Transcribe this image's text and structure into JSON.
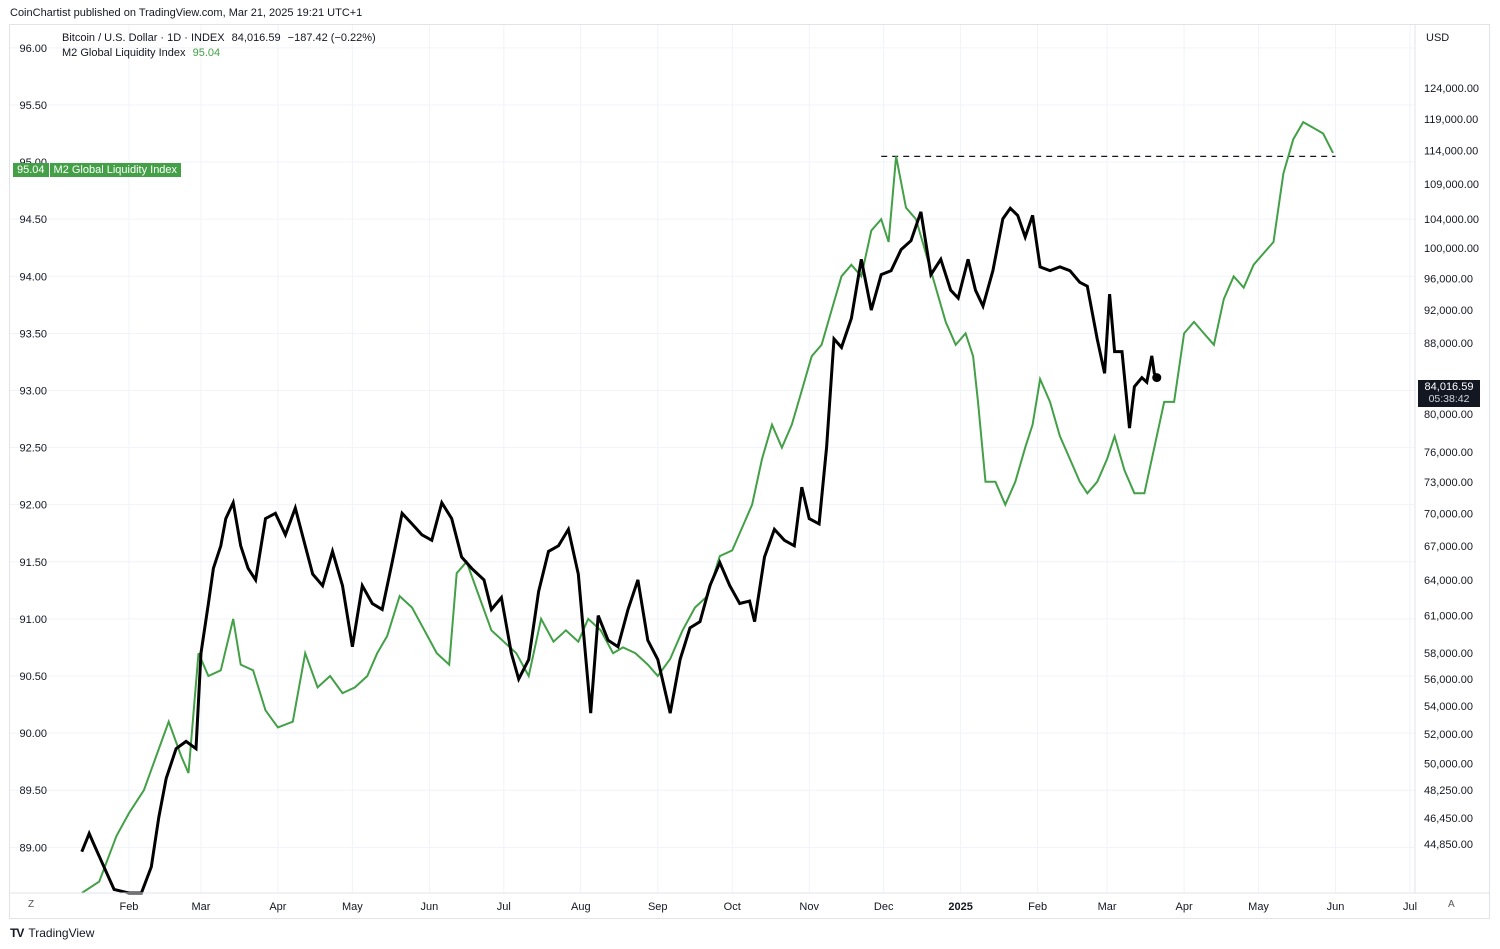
{
  "header": {
    "published": "CoinChartist published on TradingView.com, Mar 21, 2025 19:21 UTC+1"
  },
  "legend": {
    "series1_label": "Bitcoin / U.S. Dollar · 1D · INDEX",
    "series1_value": "84,016.59",
    "series1_change": "−187.42 (−0.22%)",
    "series2_label": "M2 Global Liquidity Index",
    "series2_value": "95.04"
  },
  "price_tags": {
    "m2_value": "95.04",
    "m2_label": "M2 Global Liquidity Index",
    "btc_value": "84,016.59",
    "btc_countdown": "05:38:42"
  },
  "axis": {
    "currency": "USD",
    "left_button": "Z",
    "right_button": "A"
  },
  "footer": {
    "brand": "TradingView"
  },
  "colors": {
    "m2": "#43a047",
    "btc": "#000000",
    "grid": "#f0f3fa",
    "axis_text": "#131722"
  },
  "chart_data": {
    "type": "line",
    "left_axis": {
      "min": 88.6,
      "max": 96.2,
      "ticks": [
        "96.00",
        "95.50",
        "95.00",
        "94.50",
        "94.00",
        "93.50",
        "93.00",
        "92.50",
        "92.00",
        "91.50",
        "91.00",
        "90.50",
        "90.00",
        "89.50",
        "89.00"
      ]
    },
    "right_axis": {
      "scale": "log",
      "min": 42000,
      "max": 135000,
      "ticks": [
        "124,000.00",
        "119,000.00",
        "114,000.00",
        "109,000.00",
        "104,000.00",
        "100,000.00",
        "96,000.00",
        "92,000.00",
        "88,000.00",
        "80,000.00",
        "76,000.00",
        "73,000.00",
        "70,000.00",
        "67,000.00",
        "64,000.00",
        "61,000.00",
        "58,000.00",
        "56,000.00",
        "54,000.00",
        "52,000.00",
        "50,000.00",
        "48,250.00",
        "46,450.00",
        "44,850.00"
      ]
    },
    "x_axis": {
      "labels": [
        "Feb",
        "Mar",
        "Apr",
        "May",
        "Jun",
        "Jul",
        "Aug",
        "Sep",
        "Oct",
        "Nov",
        "Dec",
        "2025",
        "Feb",
        "Mar",
        "Apr",
        "May",
        "Jun",
        "Jul"
      ]
    },
    "series": [
      {
        "name": "M2 Global Liquidity Index",
        "axis": "left",
        "points": [
          [
            "2024-01-13",
            88.0
          ],
          [
            "2024-01-20",
            88.7
          ],
          [
            "2024-01-27",
            89.1
          ],
          [
            "2024-02-01",
            89.3
          ],
          [
            "2024-02-07",
            89.5
          ],
          [
            "2024-02-12",
            89.8
          ],
          [
            "2024-02-17",
            90.1
          ],
          [
            "2024-02-22",
            89.8
          ],
          [
            "2024-02-25",
            89.65
          ],
          [
            "2024-02-29",
            90.7
          ],
          [
            "2024-03-04",
            90.5
          ],
          [
            "2024-03-09",
            90.55
          ],
          [
            "2024-03-14",
            91.0
          ],
          [
            "2024-03-17",
            90.6
          ],
          [
            "2024-03-22",
            90.55
          ],
          [
            "2024-03-27",
            90.2
          ],
          [
            "2024-04-01",
            90.05
          ],
          [
            "2024-04-07",
            90.1
          ],
          [
            "2024-04-12",
            90.7
          ],
          [
            "2024-04-17",
            90.4
          ],
          [
            "2024-04-22",
            90.5
          ],
          [
            "2024-04-27",
            90.35
          ],
          [
            "2024-05-02",
            90.4
          ],
          [
            "2024-05-07",
            90.5
          ],
          [
            "2024-05-11",
            90.7
          ],
          [
            "2024-05-15",
            90.85
          ],
          [
            "2024-05-20",
            91.2
          ],
          [
            "2024-05-25",
            91.1
          ],
          [
            "2024-05-30",
            90.9
          ],
          [
            "2024-06-04",
            90.7
          ],
          [
            "2024-06-09",
            90.6
          ],
          [
            "2024-06-12",
            91.4
          ],
          [
            "2024-06-16",
            91.5
          ],
          [
            "2024-06-21",
            91.2
          ],
          [
            "2024-06-26",
            90.9
          ],
          [
            "2024-07-01",
            90.8
          ],
          [
            "2024-07-06",
            90.7
          ],
          [
            "2024-07-11",
            90.5
          ],
          [
            "2024-07-16",
            91.0
          ],
          [
            "2024-07-21",
            90.8
          ],
          [
            "2024-07-26",
            90.9
          ],
          [
            "2024-07-31",
            90.8
          ],
          [
            "2024-08-04",
            91.0
          ],
          [
            "2024-08-09",
            90.9
          ],
          [
            "2024-08-14",
            90.7
          ],
          [
            "2024-08-18",
            90.75
          ],
          [
            "2024-08-23",
            90.7
          ],
          [
            "2024-08-28",
            90.6
          ],
          [
            "2024-09-01",
            90.5
          ],
          [
            "2024-09-06",
            90.65
          ],
          [
            "2024-09-11",
            90.9
          ],
          [
            "2024-09-16",
            91.1
          ],
          [
            "2024-09-21",
            91.2
          ],
          [
            "2024-09-26",
            91.55
          ],
          [
            "2024-10-01",
            91.6
          ],
          [
            "2024-10-05",
            91.8
          ],
          [
            "2024-10-09",
            92.0
          ],
          [
            "2024-10-13",
            92.4
          ],
          [
            "2024-10-17",
            92.7
          ],
          [
            "2024-10-21",
            92.5
          ],
          [
            "2024-10-25",
            92.7
          ],
          [
            "2024-10-29",
            93.0
          ],
          [
            "2024-11-02",
            93.3
          ],
          [
            "2024-11-06",
            93.4
          ],
          [
            "2024-11-10",
            93.7
          ],
          [
            "2024-11-14",
            94.0
          ],
          [
            "2024-11-18",
            94.1
          ],
          [
            "2024-11-22",
            94.0
          ],
          [
            "2024-11-26",
            94.4
          ],
          [
            "2024-11-30",
            94.5
          ],
          [
            "2024-12-03",
            94.3
          ],
          [
            "2024-12-06",
            95.05
          ],
          [
            "2024-12-10",
            94.6
          ],
          [
            "2024-12-14",
            94.5
          ],
          [
            "2024-12-18",
            94.2
          ],
          [
            "2024-12-22",
            93.9
          ],
          [
            "2024-12-26",
            93.6
          ],
          [
            "2024-12-30",
            93.4
          ],
          [
            "2025-01-03",
            93.5
          ],
          [
            "2025-01-06",
            93.3
          ],
          [
            "2025-01-08",
            92.9
          ],
          [
            "2025-01-11",
            92.2
          ],
          [
            "2025-01-15",
            92.2
          ],
          [
            "2025-01-19",
            92.0
          ],
          [
            "2025-01-23",
            92.2
          ],
          [
            "2025-01-27",
            92.5
          ],
          [
            "2025-01-30",
            92.7
          ],
          [
            "2025-02-02",
            93.1
          ],
          [
            "2025-02-06",
            92.9
          ],
          [
            "2025-02-10",
            92.6
          ],
          [
            "2025-02-14",
            92.4
          ],
          [
            "2025-02-18",
            92.2
          ],
          [
            "2025-02-21",
            92.1
          ],
          [
            "2025-02-25",
            92.2
          ],
          [
            "2025-03-01",
            92.4
          ],
          [
            "2025-03-04",
            92.6
          ],
          [
            "2025-03-08",
            92.3
          ],
          [
            "2025-03-12",
            92.1
          ],
          [
            "2025-03-16",
            92.1
          ],
          [
            "2025-03-20",
            92.5
          ],
          [
            "2025-03-24",
            92.9
          ],
          [
            "2025-03-28",
            92.9
          ],
          [
            "2025-04-01",
            93.5
          ],
          [
            "2025-04-05",
            93.6
          ],
          [
            "2025-04-09",
            93.5
          ],
          [
            "2025-04-13",
            93.4
          ],
          [
            "2025-04-17",
            93.8
          ],
          [
            "2025-04-21",
            94.0
          ],
          [
            "2025-04-25",
            93.9
          ],
          [
            "2025-04-29",
            94.1
          ],
          [
            "2025-05-03",
            94.2
          ],
          [
            "2025-05-07",
            94.3
          ],
          [
            "2025-05-11",
            94.9
          ],
          [
            "2025-05-15",
            95.2
          ],
          [
            "2025-05-19",
            95.35
          ],
          [
            "2025-05-23",
            95.3
          ],
          [
            "2025-05-27",
            95.25
          ],
          [
            "2025-05-31",
            95.08
          ]
        ]
      },
      {
        "name": "Bitcoin / U.S. Dollar · 1D · INDEX",
        "axis": "right",
        "points": [
          [
            "2024-01-13",
            44400
          ],
          [
            "2024-01-16",
            45500
          ],
          [
            "2024-01-18",
            44800
          ],
          [
            "2024-01-21",
            43800
          ],
          [
            "2024-01-26",
            42200
          ],
          [
            "2024-02-01",
            41800
          ],
          [
            "2024-02-06",
            41500
          ],
          [
            "2024-02-10",
            43500
          ],
          [
            "2024-02-13",
            46500
          ],
          [
            "2024-02-16",
            49000
          ],
          [
            "2024-02-20",
            51000
          ],
          [
            "2024-02-24",
            51500
          ],
          [
            "2024-02-28",
            51000
          ],
          [
            "2024-03-01",
            58000
          ],
          [
            "2024-03-04",
            62000
          ],
          [
            "2024-03-06",
            65000
          ],
          [
            "2024-03-09",
            67000
          ],
          [
            "2024-03-11",
            69500
          ],
          [
            "2024-03-14",
            71000
          ],
          [
            "2024-03-17",
            67000
          ],
          [
            "2024-03-20",
            65000
          ],
          [
            "2024-03-23",
            64000
          ],
          [
            "2024-03-27",
            69500
          ],
          [
            "2024-03-31",
            70000
          ],
          [
            "2024-04-04",
            68000
          ],
          [
            "2024-04-08",
            70500
          ],
          [
            "2024-04-12",
            67000
          ],
          [
            "2024-04-15",
            64500
          ],
          [
            "2024-04-19",
            63500
          ],
          [
            "2024-04-23",
            66500
          ],
          [
            "2024-04-27",
            63500
          ],
          [
            "2024-05-01",
            58500
          ],
          [
            "2024-05-05",
            63500
          ],
          [
            "2024-05-09",
            62000
          ],
          [
            "2024-05-13",
            61500
          ],
          [
            "2024-05-17",
            65500
          ],
          [
            "2024-05-21",
            70000
          ],
          [
            "2024-05-25",
            69000
          ],
          [
            "2024-05-29",
            68000
          ],
          [
            "2024-06-02",
            67500
          ],
          [
            "2024-06-06",
            71000
          ],
          [
            "2024-06-10",
            69500
          ],
          [
            "2024-06-14",
            66000
          ],
          [
            "2024-06-18",
            65000
          ],
          [
            "2024-06-23",
            64000
          ],
          [
            "2024-06-26",
            61500
          ],
          [
            "2024-06-30",
            62500
          ],
          [
            "2024-07-04",
            58000
          ],
          [
            "2024-07-07",
            56000
          ],
          [
            "2024-07-11",
            57500
          ],
          [
            "2024-07-15",
            63000
          ],
          [
            "2024-07-19",
            66500
          ],
          [
            "2024-07-23",
            67000
          ],
          [
            "2024-07-27",
            68500
          ],
          [
            "2024-07-31",
            64500
          ],
          [
            "2024-08-05",
            53500
          ],
          [
            "2024-08-08",
            61000
          ],
          [
            "2024-08-12",
            59000
          ],
          [
            "2024-08-16",
            58500
          ],
          [
            "2024-08-20",
            61500
          ],
          [
            "2024-08-24",
            64000
          ],
          [
            "2024-08-28",
            59000
          ],
          [
            "2024-09-01",
            57500
          ],
          [
            "2024-09-06",
            53500
          ],
          [
            "2024-09-10",
            57500
          ],
          [
            "2024-09-14",
            60000
          ],
          [
            "2024-09-18",
            60500
          ],
          [
            "2024-09-22",
            63500
          ],
          [
            "2024-09-26",
            65500
          ],
          [
            "2024-09-30",
            63500
          ],
          [
            "2024-10-04",
            62000
          ],
          [
            "2024-10-08",
            62200
          ],
          [
            "2024-10-10",
            60500
          ],
          [
            "2024-10-14",
            66000
          ],
          [
            "2024-10-18",
            68500
          ],
          [
            "2024-10-22",
            67500
          ],
          [
            "2024-10-26",
            67000
          ],
          [
            "2024-10-29",
            72500
          ],
          [
            "2024-11-01",
            69500
          ],
          [
            "2024-11-05",
            69000
          ],
          [
            "2024-11-08",
            76500
          ],
          [
            "2024-11-11",
            88500
          ],
          [
            "2024-11-14",
            87500
          ],
          [
            "2024-11-18",
            91000
          ],
          [
            "2024-11-22",
            98500
          ],
          [
            "2024-11-26",
            92000
          ],
          [
            "2024-11-30",
            96500
          ],
          [
            "2024-12-04",
            97000
          ],
          [
            "2024-12-08",
            99800
          ],
          [
            "2024-12-12",
            101000
          ],
          [
            "2024-12-16",
            105000
          ],
          [
            "2024-12-20",
            96500
          ],
          [
            "2024-12-24",
            98500
          ],
          [
            "2024-12-28",
            94500
          ],
          [
            "2024-12-31",
            93500
          ],
          [
            "2025-01-04",
            98500
          ],
          [
            "2025-01-07",
            94500
          ],
          [
            "2025-01-10",
            92500
          ],
          [
            "2025-01-14",
            97000
          ],
          [
            "2025-01-18",
            104000
          ],
          [
            "2025-01-21",
            105500
          ],
          [
            "2025-01-24",
            104500
          ],
          [
            "2025-01-27",
            101500
          ],
          [
            "2025-01-30",
            104500
          ],
          [
            "2025-02-02",
            97500
          ],
          [
            "2025-02-06",
            97000
          ],
          [
            "2025-02-10",
            97500
          ],
          [
            "2025-02-14",
            97000
          ],
          [
            "2025-02-18",
            95500
          ],
          [
            "2025-02-21",
            95000
          ],
          [
            "2025-02-25",
            88500
          ],
          [
            "2025-02-28",
            84500
          ],
          [
            "2025-03-02",
            94000
          ],
          [
            "2025-03-04",
            87000
          ],
          [
            "2025-03-07",
            87000
          ],
          [
            "2025-03-10",
            78500
          ],
          [
            "2025-03-12",
            83000
          ],
          [
            "2025-03-15",
            84000
          ],
          [
            "2025-03-17",
            83500
          ],
          [
            "2025-03-19",
            86500
          ],
          [
            "2025-03-20",
            84500
          ],
          [
            "2025-03-21",
            84016.59
          ]
        ]
      }
    ],
    "annotations": [
      {
        "type": "dashed-horizontal",
        "from": "2024-11-30",
        "to": "2025-06-01",
        "left_value": 95.05
      }
    ]
  }
}
